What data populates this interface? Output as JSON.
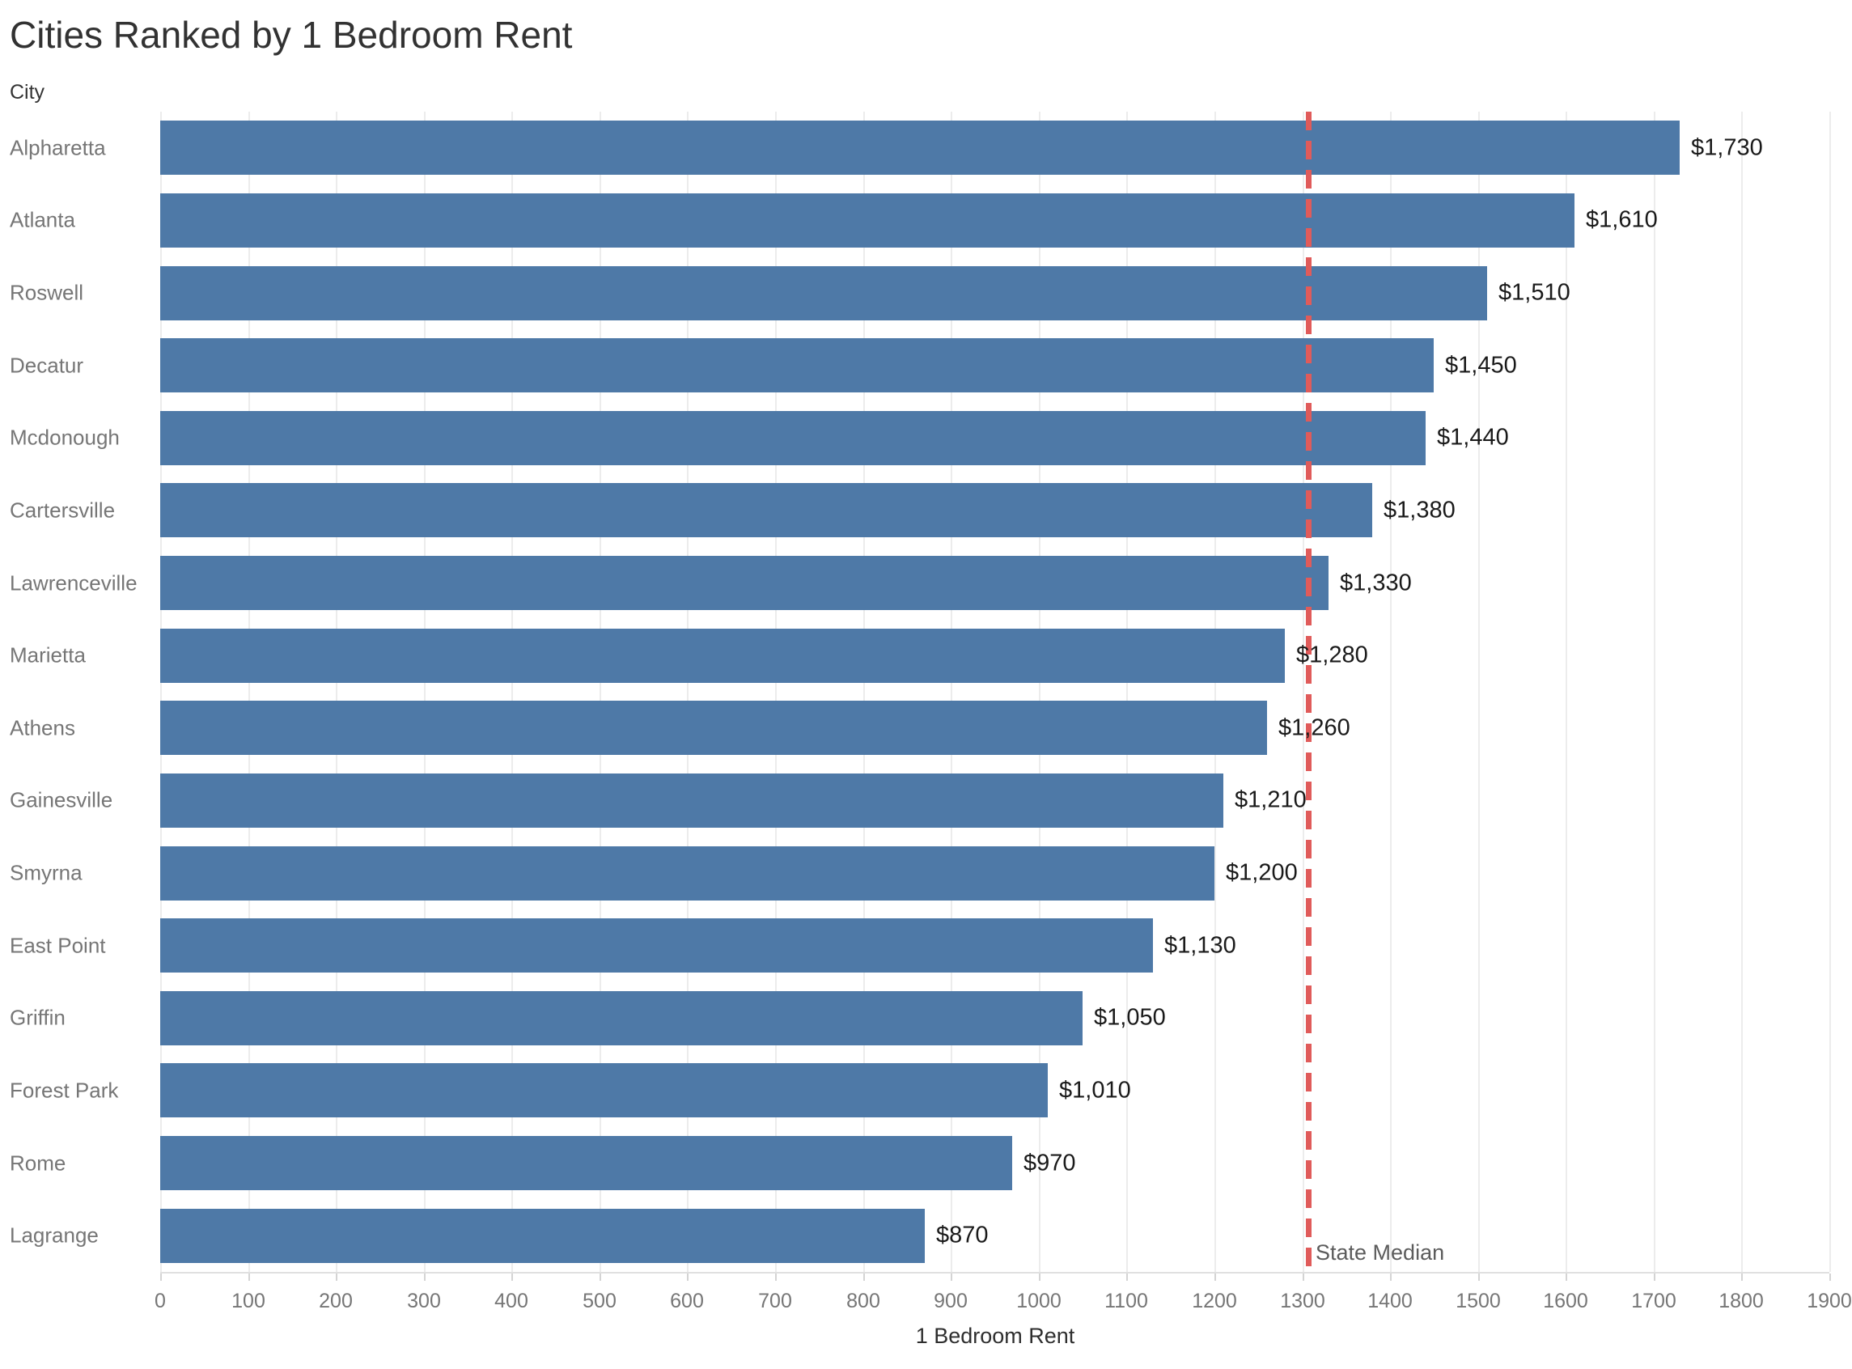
{
  "page_title": "Cities Ranked by 1 Bedroom Rent",
  "chart_data": {
    "type": "bar",
    "orientation": "horizontal",
    "title": "Cities Ranked by 1 Bedroom Rent",
    "category_axis_label": "City",
    "xlabel": "1 Bedroom Rent",
    "categories": [
      "Alpharetta",
      "Atlanta",
      "Roswell",
      "Decatur",
      "Mcdonough",
      "Cartersville",
      "Lawrenceville",
      "Marietta",
      "Athens",
      "Gainesville",
      "Smyrna",
      "East Point",
      "Griffin",
      "Forest Park",
      "Rome",
      "Lagrange"
    ],
    "values": [
      1730,
      1610,
      1510,
      1450,
      1440,
      1380,
      1330,
      1280,
      1260,
      1210,
      1200,
      1130,
      1050,
      1010,
      970,
      870
    ],
    "value_labels": [
      "$1,730",
      "$1,610",
      "$1,510",
      "$1,450",
      "$1,440",
      "$1,380",
      "$1,330",
      "$1,280",
      "$1,260",
      "$1,210",
      "$1,200",
      "$1,130",
      "$1,050",
      "$1,010",
      "$970",
      "$870"
    ],
    "xlim": [
      0,
      1900
    ],
    "xticks": [
      0,
      100,
      200,
      300,
      400,
      500,
      600,
      700,
      800,
      900,
      1000,
      1100,
      1200,
      1300,
      1400,
      1500,
      1600,
      1700,
      1800,
      1900
    ],
    "grid": true,
    "legend": false,
    "reference_line": {
      "label": "State Median",
      "value": 1307,
      "style": "dashed"
    },
    "colors": {
      "bar": "#4e79a7",
      "reference_line": "#e05b5a",
      "gridline": "#ececec",
      "axis_line": "#e0e0e0",
      "tick_mark": "#d4d4d4",
      "title_text": "#323232",
      "header_text": "#333333",
      "category_text": "#767676",
      "tick_text": "#767676",
      "value_text": "#1a1a1a",
      "axis_title_text": "#2e2e2e",
      "reference_label_text": "#5c5c5c"
    }
  }
}
